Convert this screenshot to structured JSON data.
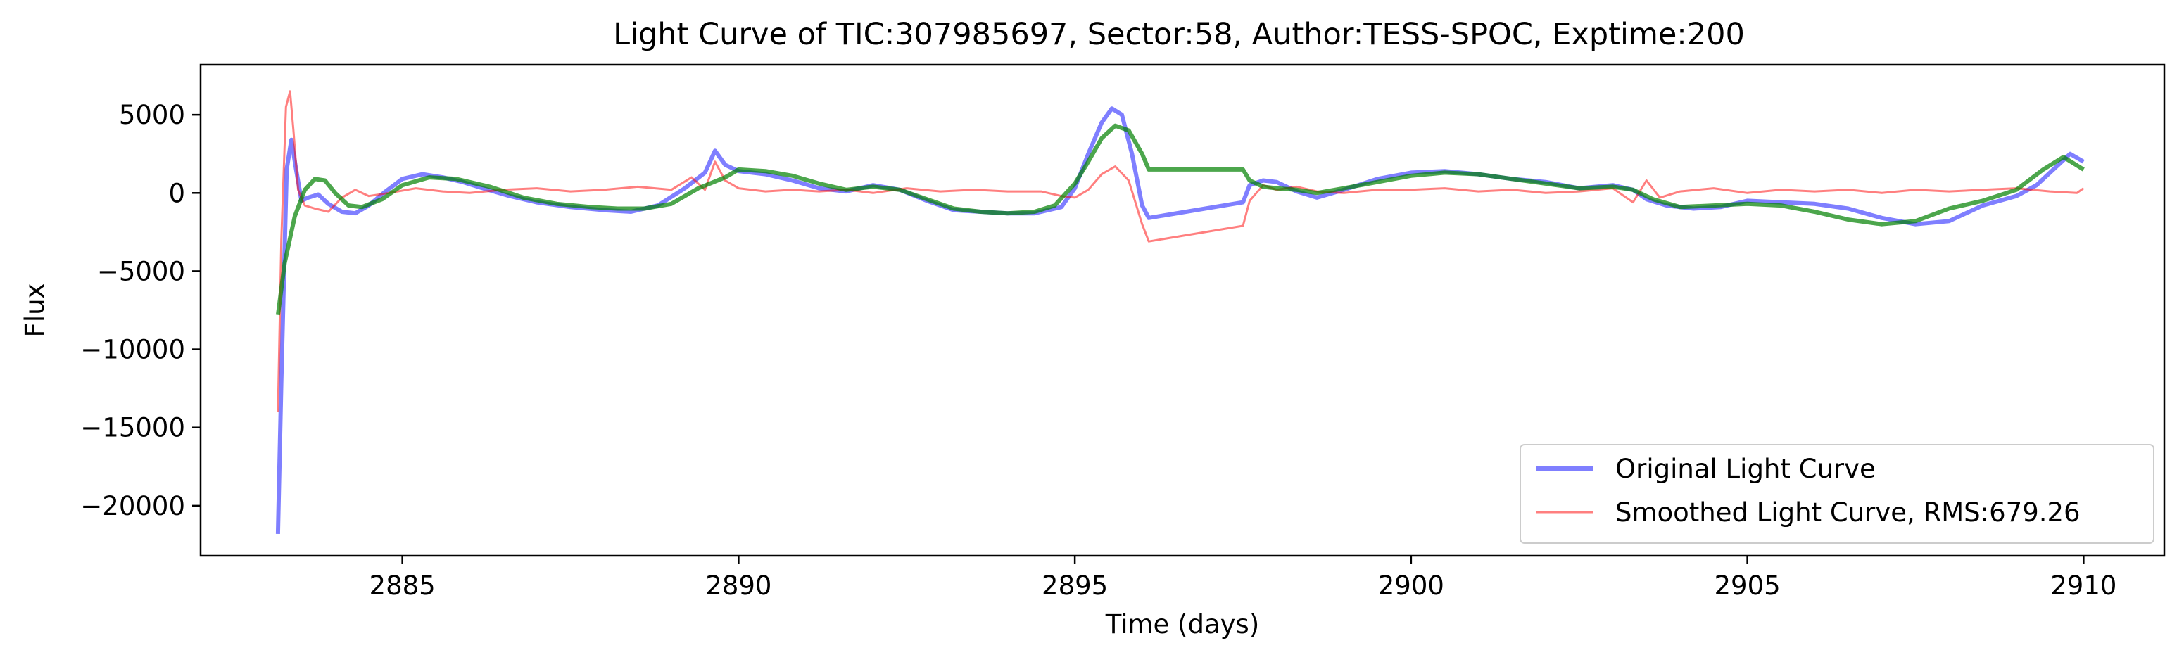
{
  "chart_data": {
    "type": "line",
    "title": "Light Curve of TIC:307985697, Sector:58, Author:TESS-SPOC, Exptime:200",
    "xlabel": "Time (days)",
    "ylabel": "Flux",
    "xlim": [
      2882,
      2911.2
    ],
    "ylim": [
      -23200,
      8200
    ],
    "xticks": [
      2885,
      2890,
      2895,
      2900,
      2905,
      2910
    ],
    "xtick_labels": [
      "2885",
      "2890",
      "2895",
      "2900",
      "2905",
      "2910"
    ],
    "yticks": [
      5000,
      0,
      -5000,
      -10000,
      -15000,
      -20000
    ],
    "ytick_labels": [
      "5000",
      "0",
      "−5000",
      "−10000",
      "−15000",
      "−20000"
    ],
    "grid": false,
    "legend_position": "lower right",
    "series": [
      {
        "name": "Original Light Curve",
        "color": "#0000ff",
        "opacity": 0.5,
        "x": [
          2883.15,
          2883.2,
          2883.28,
          2883.35,
          2883.42,
          2883.5,
          2883.6,
          2883.75,
          2883.9,
          2884.1,
          2884.3,
          2884.5,
          2884.75,
          2885.0,
          2885.3,
          2885.6,
          2885.9,
          2886.2,
          2886.6,
          2887.0,
          2887.5,
          2888.0,
          2888.4,
          2888.8,
          2889.2,
          2889.5,
          2889.65,
          2889.8,
          2890.0,
          2890.4,
          2890.8,
          2891.2,
          2891.6,
          2892.0,
          2892.4,
          2892.8,
          2893.2,
          2893.6,
          2894.0,
          2894.4,
          2894.8,
          2895.0,
          2895.2,
          2895.4,
          2895.55,
          2895.7,
          2895.85,
          2896.0,
          2896.1,
          2897.5,
          2897.6,
          2897.8,
          2898.0,
          2898.3,
          2898.6,
          2899.0,
          2899.5,
          2900.0,
          2900.5,
          2901.0,
          2901.5,
          2902.0,
          2902.5,
          2903.0,
          2903.3,
          2903.5,
          2903.8,
          2904.2,
          2904.6,
          2905.0,
          2905.5,
          2906.0,
          2906.5,
          2907.0,
          2907.5,
          2908.0,
          2908.5,
          2909.0,
          2909.3,
          2909.6,
          2909.8,
          2910.0
        ],
        "y": [
          -21800,
          -12000,
          1500,
          3400,
          1500,
          -500,
          -300,
          -100,
          -700,
          -1200,
          -1300,
          -800,
          100,
          900,
          1200,
          1000,
          700,
          300,
          -200,
          -600,
          -900,
          -1100,
          -1200,
          -800,
          300,
          1300,
          2700,
          1800,
          1400,
          1200,
          800,
          300,
          100,
          500,
          200,
          -500,
          -1100,
          -1200,
          -1300,
          -1300,
          -900,
          300,
          2500,
          4500,
          5400,
          5000,
          2500,
          -800,
          -1600,
          -600,
          500,
          800,
          700,
          100,
          -300,
          200,
          900,
          1300,
          1400,
          1200,
          900,
          700,
          300,
          500,
          200,
          -400,
          -800,
          -1000,
          -900,
          -500,
          -600,
          -700,
          -1000,
          -1600,
          -2000,
          -1800,
          -800,
          -200,
          500,
          1700,
          2500,
          2000
        ]
      },
      {
        "name": "Smoothed Light Curve, RMS:679.26",
        "color": "#ff0000",
        "opacity": 0.5,
        "x": [
          2883.15,
          2883.2,
          2883.27,
          2883.33,
          2883.38,
          2883.45,
          2883.55,
          2883.7,
          2883.9,
          2884.1,
          2884.3,
          2884.5,
          2884.8,
          2885.2,
          2885.6,
          2886.0,
          2886.5,
          2887.0,
          2887.5,
          2888.0,
          2888.5,
          2889.0,
          2889.3,
          2889.5,
          2889.65,
          2889.8,
          2890.0,
          2890.4,
          2890.8,
          2891.2,
          2891.6,
          2892.0,
          2892.5,
          2893.0,
          2893.5,
          2894.0,
          2894.5,
          2894.8,
          2895.0,
          2895.2,
          2895.4,
          2895.6,
          2895.8,
          2896.0,
          2896.1,
          2897.5,
          2897.6,
          2897.8,
          2898.0,
          2898.3,
          2898.6,
          2899.0,
          2899.5,
          2900.0,
          2900.5,
          2901.0,
          2901.5,
          2902.0,
          2902.5,
          2903.0,
          2903.3,
          2903.5,
          2903.7,
          2904.0,
          2904.5,
          2905.0,
          2905.5,
          2906.0,
          2906.5,
          2907.0,
          2907.5,
          2908.0,
          2908.5,
          2909.0,
          2909.5,
          2909.9,
          2910.0
        ],
        "y": [
          -14000,
          -3000,
          5500,
          6500,
          4000,
          200,
          -800,
          -1000,
          -1200,
          -300,
          200,
          -200,
          0,
          300,
          100,
          0,
          200,
          300,
          100,
          200,
          400,
          200,
          1000,
          200,
          2000,
          800,
          300,
          100,
          200,
          100,
          200,
          0,
          300,
          100,
          200,
          100,
          100,
          -200,
          -300,
          200,
          1200,
          1700,
          800,
          -2000,
          -3100,
          -2100,
          -500,
          500,
          200,
          400,
          100,
          0,
          200,
          200,
          300,
          100,
          200,
          0,
          100,
          300,
          -600,
          800,
          -300,
          100,
          300,
          0,
          200,
          100,
          200,
          0,
          200,
          100,
          200,
          300,
          100,
          0,
          300
        ]
      },
      {
        "color": "#008000",
        "opacity": 0.7,
        "x": [
          2883.15,
          2883.25,
          2883.4,
          2883.55,
          2883.7,
          2883.85,
          2884.0,
          2884.2,
          2884.4,
          2884.7,
          2885.0,
          2885.4,
          2885.8,
          2886.3,
          2886.8,
          2887.3,
          2887.8,
          2888.2,
          2888.6,
          2889.0,
          2889.4,
          2889.8,
          2890.0,
          2890.4,
          2890.8,
          2891.2,
          2891.6,
          2892.0,
          2892.4,
          2892.8,
          2893.2,
          2893.6,
          2894.0,
          2894.4,
          2894.7,
          2895.0,
          2895.2,
          2895.4,
          2895.6,
          2895.8,
          2896.0,
          2896.1,
          2897.5,
          2897.6,
          2897.8,
          2898.0,
          2898.3,
          2898.6,
          2899.0,
          2899.5,
          2900.0,
          2900.5,
          2901.0,
          2901.5,
          2902.0,
          2902.5,
          2903.0,
          2903.3,
          2903.6,
          2904.0,
          2904.5,
          2905.0,
          2905.5,
          2906.0,
          2906.5,
          2907.0,
          2907.5,
          2908.0,
          2908.5,
          2909.0,
          2909.4,
          2909.7,
          2910.0
        ],
        "y": [
          -7800,
          -4500,
          -1500,
          200,
          900,
          800,
          0,
          -800,
          -900,
          -400,
          500,
          1000,
          900,
          400,
          -300,
          -700,
          -900,
          -1000,
          -1000,
          -700,
          300,
          1000,
          1500,
          1400,
          1100,
          600,
          200,
          400,
          200,
          -400,
          -1000,
          -1200,
          -1300,
          -1200,
          -800,
          600,
          2000,
          3500,
          4300,
          4000,
          2500,
          1500,
          1500,
          800,
          400,
          300,
          200,
          0,
          300,
          700,
          1100,
          1300,
          1200,
          900,
          600,
          300,
          400,
          200,
          -400,
          -900,
          -800,
          -700,
          -800,
          -1200,
          -1700,
          -2000,
          -1800,
          -1000,
          -500,
          200,
          1500,
          2300,
          1500
        ]
      }
    ]
  }
}
